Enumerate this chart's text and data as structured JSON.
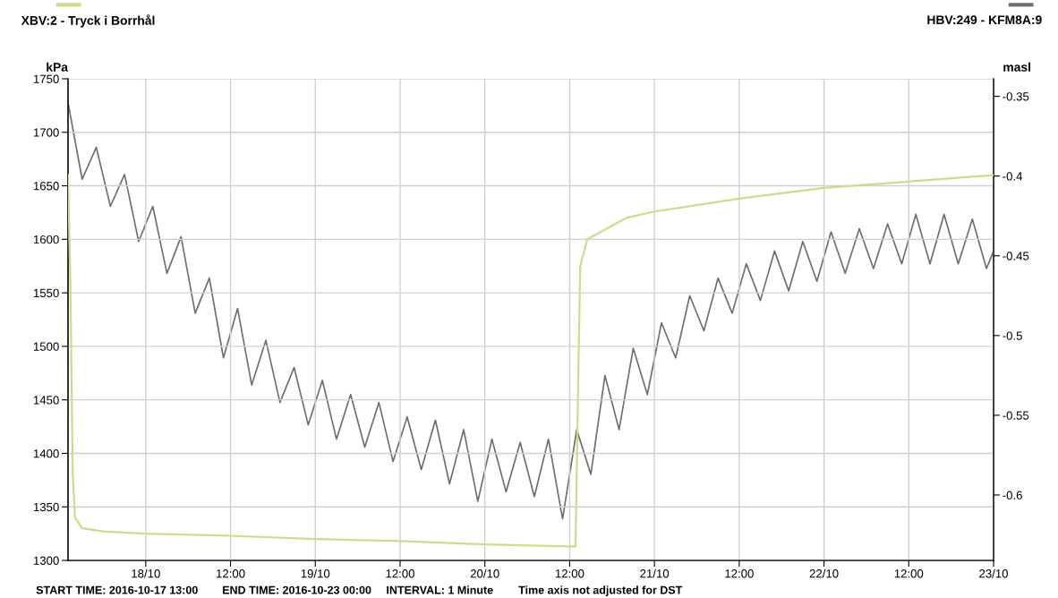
{
  "chart_data": {
    "type": "line",
    "ylabel": "kPa",
    "y2label": "masl",
    "xlim": [
      "2016-10-17T13:00",
      "2016-10-23T00:00"
    ],
    "xticks": [
      {
        "value": "2016-10-18T00:00",
        "label": "18/10"
      },
      {
        "value": "2016-10-18T12:00",
        "label": "12:00"
      },
      {
        "value": "2016-10-19T00:00",
        "label": "19/10"
      },
      {
        "value": "2016-10-19T12:00",
        "label": "12:00"
      },
      {
        "value": "2016-10-20T00:00",
        "label": "20/10"
      },
      {
        "value": "2016-10-20T12:00",
        "label": "12:00"
      },
      {
        "value": "2016-10-21T00:00",
        "label": "21/10"
      },
      {
        "value": "2016-10-21T12:00",
        "label": "12:00"
      },
      {
        "value": "2016-10-22T00:00",
        "label": "22/10"
      },
      {
        "value": "2016-10-22T12:00",
        "label": "12:00"
      },
      {
        "value": "2016-10-23T00:00",
        "label": "23/10"
      }
    ],
    "ylim": [
      1300,
      1750
    ],
    "yticks": [
      1300,
      1350,
      1400,
      1450,
      1500,
      1550,
      1600,
      1650,
      1700,
      1750
    ],
    "y2lim": [
      -0.641,
      -0.339
    ],
    "y2ticks": [
      -0.6,
      -0.55,
      -0.5,
      -0.45,
      -0.4,
      -0.35
    ],
    "grid": true,
    "legend": "top",
    "series": [
      {
        "name": "XBV:2 - Tryck i Borrhål",
        "color": "#d4d88a",
        "x": [
          "2016-10-17T13:00",
          "2016-10-17T13:20",
          "2016-10-17T13:40",
          "2016-10-17T14:00",
          "2016-10-17T15:00",
          "2016-10-17T18:00",
          "2016-10-18T00:00",
          "2016-10-18T12:00",
          "2016-10-19T00:00",
          "2016-10-19T12:00",
          "2016-10-20T00:00",
          "2016-10-20T12:00",
          "2016-10-20T12:50",
          "2016-10-20T13:10",
          "2016-10-20T13:30",
          "2016-10-20T14:30",
          "2016-10-20T20:00",
          "2016-10-21T00:00",
          "2016-10-21T12:00",
          "2016-10-22T00:00",
          "2016-10-22T12:00",
          "2016-10-23T00:00"
        ],
        "values": [
          1660,
          1560,
          1380,
          1340,
          1330,
          1327,
          1325,
          1323,
          1320,
          1318,
          1315,
          1313,
          1313,
          1450,
          1575,
          1600,
          1620,
          1626,
          1638,
          1648,
          1654,
          1660
        ]
      },
      {
        "name": "HBV:249 - KFM8A:9",
        "color": "#6e6e6e",
        "axis": "y2",
        "x": [
          "2016-10-17T13:00",
          "2016-10-17T15:00",
          "2016-10-17T17:00",
          "2016-10-17T19:00",
          "2016-10-17T21:00",
          "2016-10-17T23:00",
          "2016-10-18T01:00",
          "2016-10-18T03:00",
          "2016-10-18T05:00",
          "2016-10-18T07:00",
          "2016-10-18T09:00",
          "2016-10-18T11:00",
          "2016-10-18T13:00",
          "2016-10-18T15:00",
          "2016-10-18T17:00",
          "2016-10-18T19:00",
          "2016-10-18T21:00",
          "2016-10-18T23:00",
          "2016-10-19T01:00",
          "2016-10-19T03:00",
          "2016-10-19T05:00",
          "2016-10-19T07:00",
          "2016-10-19T09:00",
          "2016-10-19T11:00",
          "2016-10-19T13:00",
          "2016-10-19T15:00",
          "2016-10-19T17:00",
          "2016-10-19T19:00",
          "2016-10-19T21:00",
          "2016-10-19T23:00",
          "2016-10-20T01:00",
          "2016-10-20T03:00",
          "2016-10-20T05:00",
          "2016-10-20T07:00",
          "2016-10-20T09:00",
          "2016-10-20T11:00",
          "2016-10-20T13:00",
          "2016-10-20T15:00",
          "2016-10-20T17:00",
          "2016-10-20T19:00",
          "2016-10-20T21:00",
          "2016-10-20T23:00",
          "2016-10-21T01:00",
          "2016-10-21T03:00",
          "2016-10-21T05:00",
          "2016-10-21T07:00",
          "2016-10-21T09:00",
          "2016-10-21T11:00",
          "2016-10-21T13:00",
          "2016-10-21T15:00",
          "2016-10-21T17:00",
          "2016-10-21T19:00",
          "2016-10-21T21:00",
          "2016-10-21T23:00",
          "2016-10-22T01:00",
          "2016-10-22T03:00",
          "2016-10-22T05:00",
          "2016-10-22T07:00",
          "2016-10-22T09:00",
          "2016-10-22T11:00",
          "2016-10-22T13:00",
          "2016-10-22T15:00",
          "2016-10-22T17:00",
          "2016-10-22T19:00",
          "2016-10-22T21:00",
          "2016-10-22T23:00",
          "2016-10-23T00:00"
        ],
        "values": [
          -0.354,
          -0.402,
          -0.382,
          -0.419,
          -0.399,
          -0.441,
          -0.419,
          -0.461,
          -0.438,
          -0.486,
          -0.464,
          -0.514,
          -0.483,
          -0.531,
          -0.503,
          -0.542,
          -0.52,
          -0.556,
          -0.528,
          -0.565,
          -0.537,
          -0.57,
          -0.542,
          -0.579,
          -0.551,
          -0.584,
          -0.553,
          -0.593,
          -0.559,
          -0.604,
          -0.565,
          -0.598,
          -0.567,
          -0.601,
          -0.565,
          -0.615,
          -0.559,
          -0.587,
          -0.525,
          -0.559,
          -0.508,
          -0.537,
          -0.492,
          -0.514,
          -0.475,
          -0.497,
          -0.464,
          -0.486,
          -0.455,
          -0.478,
          -0.447,
          -0.472,
          -0.441,
          -0.466,
          -0.435,
          -0.461,
          -0.433,
          -0.458,
          -0.43,
          -0.455,
          -0.424,
          -0.455,
          -0.424,
          -0.455,
          -0.427,
          -0.458,
          -0.447
        ]
      }
    ],
    "annotations": [
      "START TIME: 2016-10-17 13:00",
      "END TIME: 2016-10-23 00:00",
      "INTERVAL: 1 Minute",
      "Time axis not adjusted for DST"
    ]
  }
}
